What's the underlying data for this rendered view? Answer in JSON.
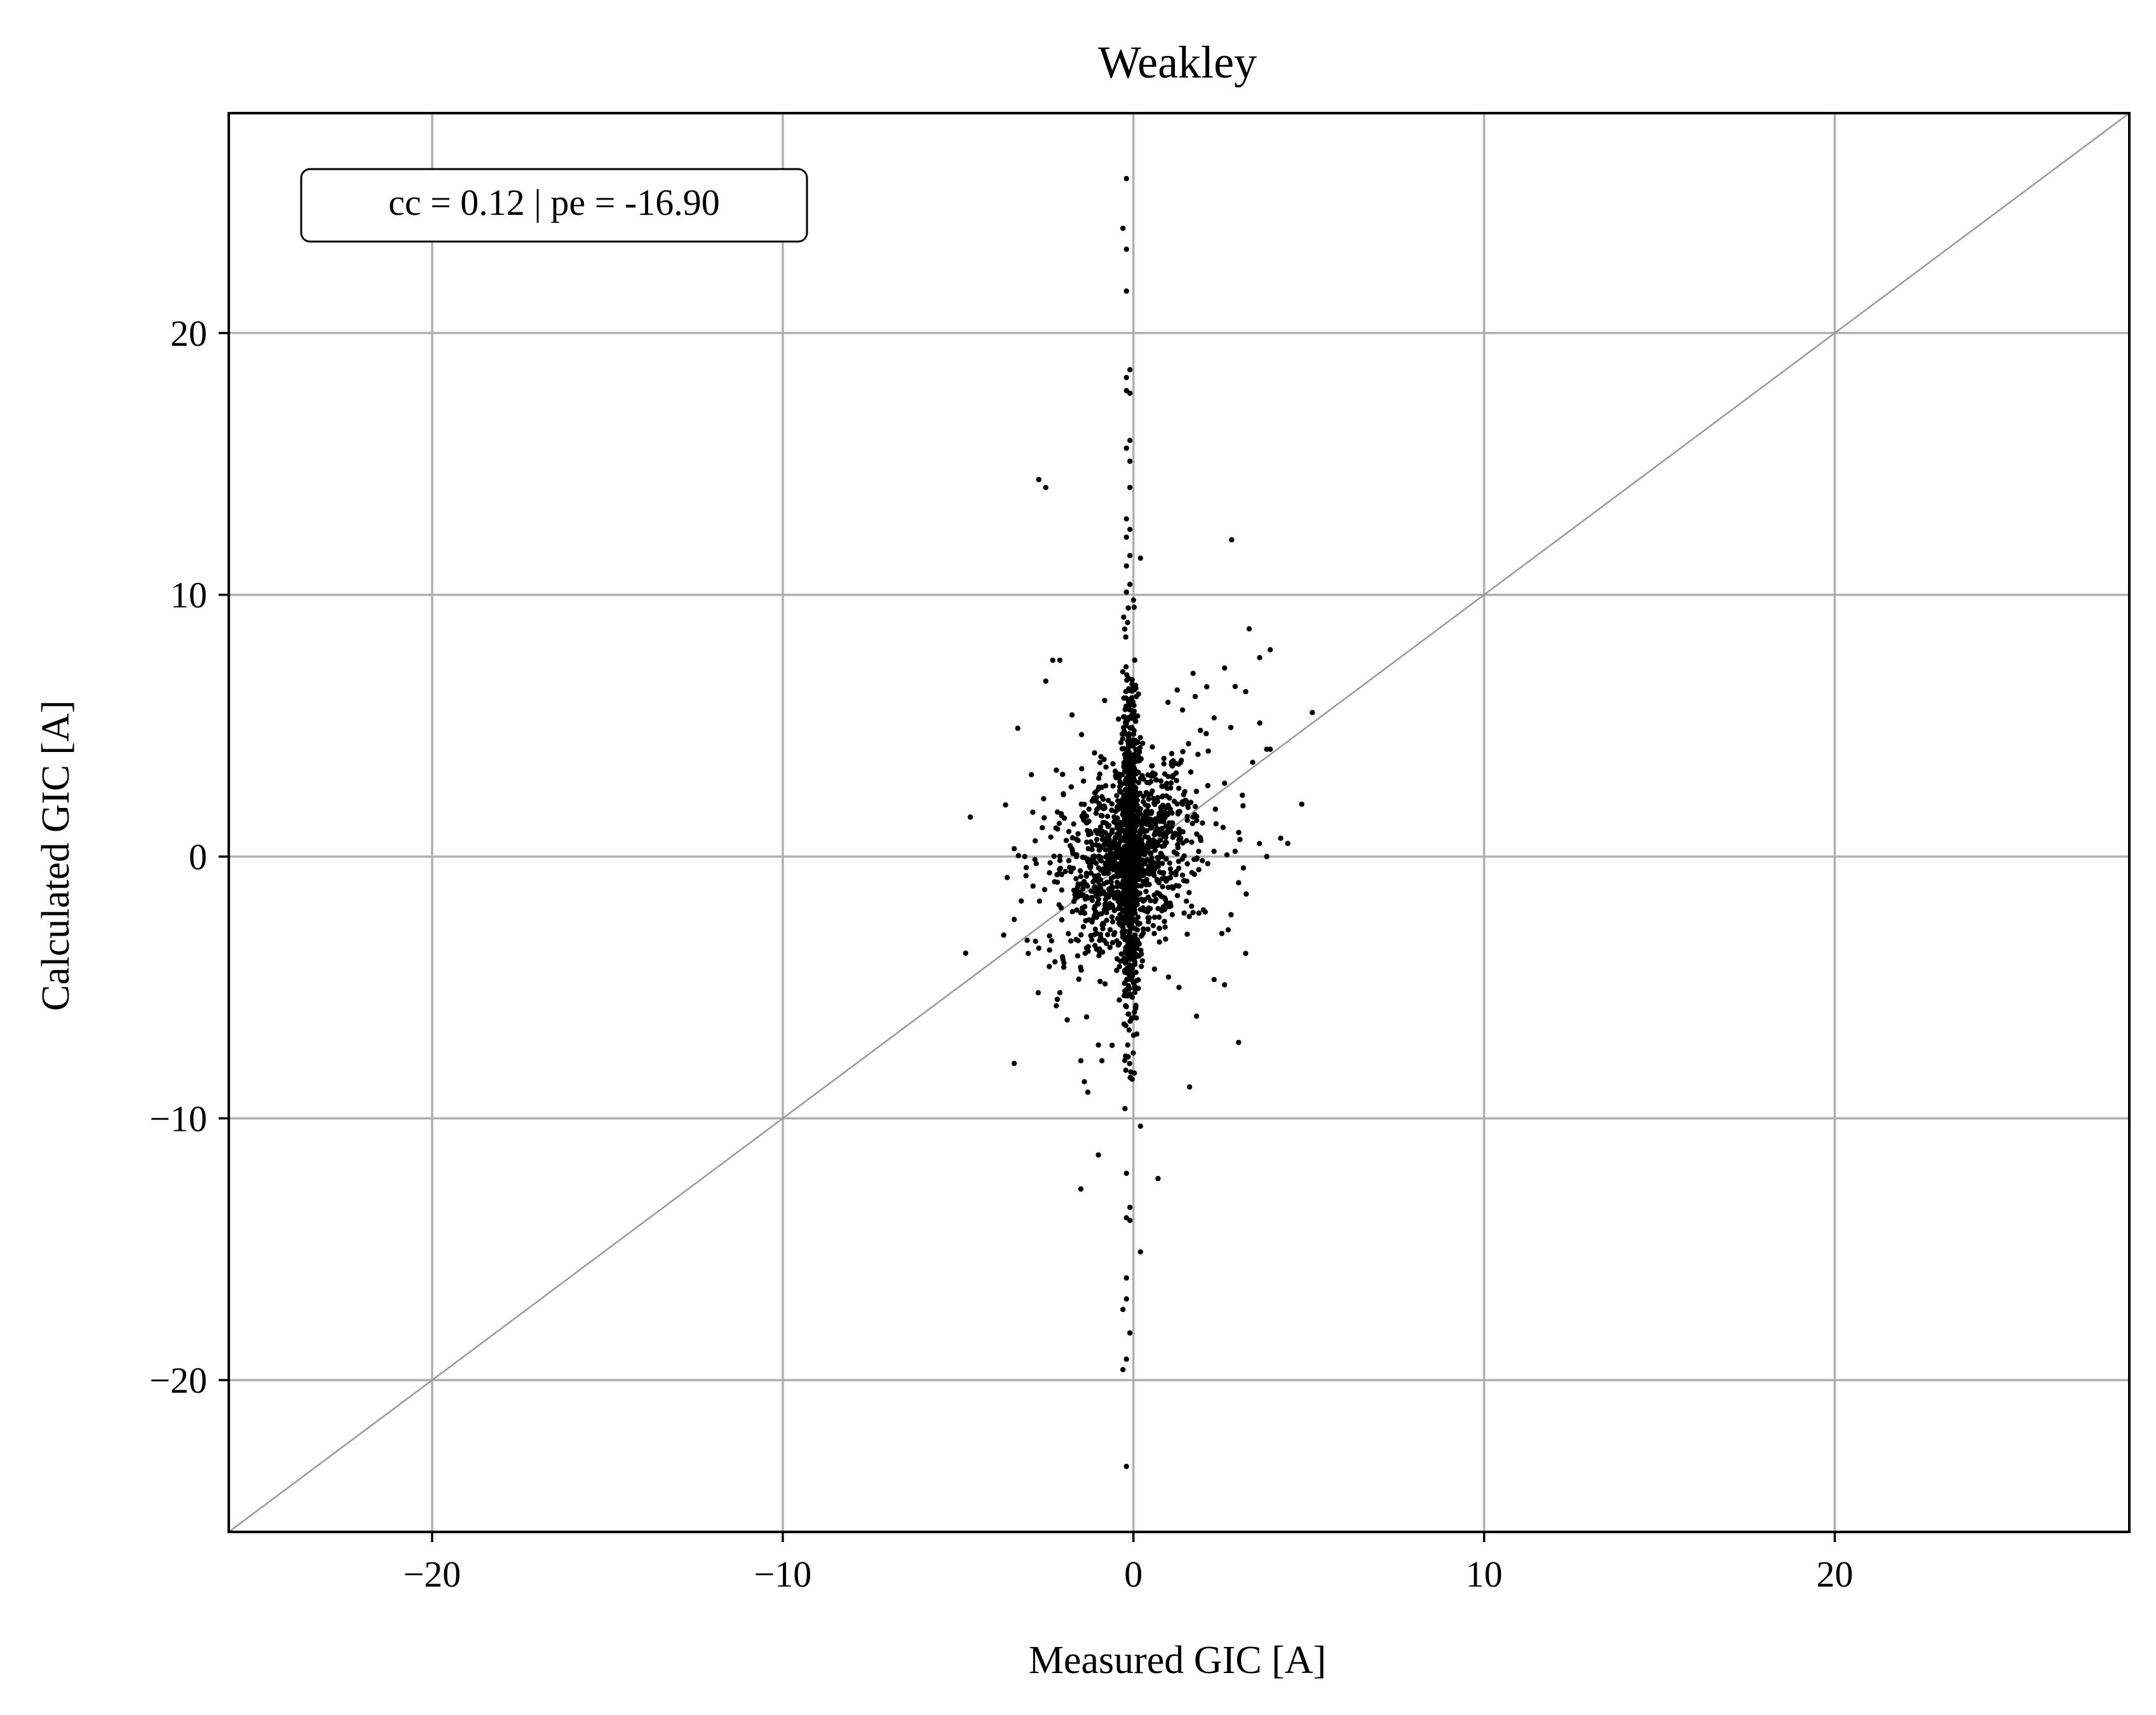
{
  "colors": {
    "points": "#000000",
    "grid": "#b0b0b0",
    "identity_line": "#999999",
    "axes": "#000000",
    "background": "#ffffff"
  },
  "chart_data": {
    "type": "scatter",
    "title": "Weakley",
    "xlabel": "Measured GIC [A]",
    "ylabel": "Calculated GIC [A]",
    "xlim": [
      -25.8,
      28.4
    ],
    "ylim": [
      -25.8,
      28.4
    ],
    "xticks": [
      -20,
      -10,
      0,
      10,
      20
    ],
    "yticks": [
      -20,
      -10,
      0,
      10,
      20
    ],
    "xtick_labels": [
      "−20",
      "−10",
      "0",
      "10",
      "20"
    ],
    "ytick_labels": [
      "−20",
      "−10",
      "0",
      "10",
      "20"
    ],
    "grid": true,
    "reference_line": "y = x",
    "annotation": {
      "text": "cc = 0.12 | pe = -16.90",
      "placement": "top-left"
    },
    "points": [
      [
        -0.2,
        25.9
      ],
      [
        -0.3,
        24.0
      ],
      [
        -0.2,
        23.2
      ],
      [
        -0.2,
        21.6
      ],
      [
        -0.1,
        18.6
      ],
      [
        -0.2,
        18.3
      ],
      [
        -0.2,
        17.8
      ],
      [
        -0.1,
        17.7
      ],
      [
        -0.1,
        15.9
      ],
      [
        -0.2,
        15.6
      ],
      [
        -0.1,
        15.1
      ],
      [
        -0.1,
        14.1
      ],
      [
        -2.7,
        14.4
      ],
      [
        -2.5,
        14.1
      ],
      [
        2.8,
        12.1
      ],
      [
        -0.2,
        12.9
      ],
      [
        -0.1,
        12.5
      ],
      [
        -0.2,
        12.2
      ],
      [
        -0.1,
        11.5
      ],
      [
        -0.2,
        11.1
      ],
      [
        0.2,
        11.4
      ],
      [
        -0.1,
        10.4
      ],
      [
        -0.2,
        10.1
      ],
      [
        0.0,
        9.8
      ],
      [
        3.3,
        8.7
      ],
      [
        3.9,
        7.9
      ],
      [
        3.6,
        7.6
      ],
      [
        2.6,
        7.2
      ],
      [
        1.7,
        7.0
      ],
      [
        -2.3,
        7.5
      ],
      [
        -2.1,
        7.5
      ],
      [
        -2.5,
        6.7
      ],
      [
        2.9,
        6.5
      ],
      [
        3.2,
        6.3
      ],
      [
        -3.3,
        4.9
      ],
      [
        1.4,
        5.6
      ],
      [
        2.3,
        5.3
      ],
      [
        3.6,
        5.1
      ],
      [
        5.1,
        5.5
      ],
      [
        4.8,
        2.0
      ],
      [
        4.4,
        0.5
      ],
      [
        4.2,
        0.7
      ],
      [
        3.8,
        0.0
      ],
      [
        3.9,
        4.1
      ],
      [
        -3.1,
        0.0
      ],
      [
        -3.4,
        0.3
      ],
      [
        -3.6,
        -0.8
      ],
      [
        -3.7,
        -3.0
      ],
      [
        -3.4,
        -2.4
      ],
      [
        -3.2,
        -1.7
      ],
      [
        -3.0,
        -3.7
      ],
      [
        -3.4,
        -7.9
      ],
      [
        -2.7,
        -3.5
      ],
      [
        -2.8,
        0.6
      ],
      [
        -2.6,
        1.1
      ],
      [
        -2.2,
        3.3
      ],
      [
        -2.0,
        2.4
      ],
      [
        -2.4,
        -4.2
      ],
      [
        -2.2,
        -5.7
      ],
      [
        -2.1,
        -5.2
      ],
      [
        -1.5,
        -7.8
      ],
      [
        -1.3,
        -9.0
      ],
      [
        -1.4,
        -8.6
      ],
      [
        -1.0,
        -11.4
      ],
      [
        -1.5,
        -12.7
      ],
      [
        -1.0,
        -7.2
      ],
      [
        -0.9,
        -7.8
      ],
      [
        0.7,
        -12.3
      ],
      [
        0.2,
        -15.1
      ],
      [
        0.2,
        -10.3
      ],
      [
        -0.2,
        -12.1
      ],
      [
        -0.1,
        -13.4
      ],
      [
        -0.2,
        -13.8
      ],
      [
        -0.1,
        -13.9
      ],
      [
        -0.2,
        -16.1
      ],
      [
        -0.2,
        -16.9
      ],
      [
        -0.3,
        -17.3
      ],
      [
        -0.1,
        -18.2
      ],
      [
        -0.2,
        -19.2
      ],
      [
        -0.3,
        -19.6
      ],
      [
        -0.2,
        -23.3
      ],
      [
        1.6,
        -8.8
      ],
      [
        3.0,
        -7.1
      ],
      [
        2.3,
        -4.7
      ],
      [
        2.6,
        -4.9
      ],
      [
        3.2,
        -3.7
      ],
      [
        2.7,
        -2.8
      ],
      [
        1.3,
        -5.0
      ],
      [
        1.0,
        -4.6
      ],
      [
        0.6,
        -4.3
      ],
      [
        1.8,
        -6.1
      ],
      [
        3.0,
        -1.0
      ],
      [
        2.9,
        0.2
      ],
      [
        2.6,
        2.8
      ],
      [
        3.4,
        3.6
      ],
      [
        3.8,
        4.1
      ]
    ],
    "dense_core": {
      "description": "dense cluster",
      "x_center": -0.1,
      "y_center": 0.0
    }
  }
}
